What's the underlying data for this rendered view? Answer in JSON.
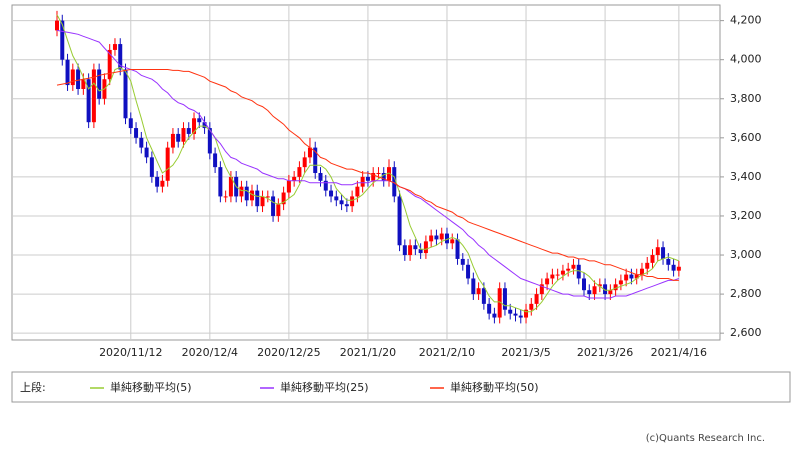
{
  "chart_data": {
    "type": "candlestick",
    "categories": [
      null,
      null,
      null,
      null,
      null,
      null,
      null,
      null,
      null,
      null,
      null,
      null,
      null,
      null,
      "2020/11/12",
      null,
      null,
      null,
      null,
      null,
      null,
      null,
      null,
      null,
      null,
      null,
      null,
      null,
      null,
      "2020/12/4",
      null,
      null,
      null,
      null,
      null,
      null,
      null,
      null,
      null,
      null,
      null,
      null,
      null,
      null,
      "2020/12/25",
      null,
      null,
      null,
      null,
      null,
      null,
      null,
      null,
      null,
      null,
      null,
      null,
      null,
      null,
      "2021/1/20",
      null,
      null,
      null,
      null,
      null,
      null,
      null,
      null,
      null,
      null,
      null,
      null,
      null,
      null,
      "2021/2/10",
      null,
      null,
      null,
      null,
      null,
      null,
      null,
      null,
      null,
      null,
      null,
      null,
      null,
      null,
      "2021/3/5",
      null,
      null,
      null,
      null,
      null,
      null,
      null,
      null,
      null,
      null,
      null,
      null,
      null,
      null,
      "2021/3/26",
      null,
      null,
      null,
      null,
      null,
      null,
      null,
      null,
      null,
      null,
      null,
      null,
      null,
      "2021/4/16"
    ],
    "open": [
      4150,
      4200,
      4000,
      3870,
      3950,
      3850,
      3900,
      3680,
      3950,
      3800,
      3900,
      4050,
      4080,
      3950,
      3700,
      3650,
      3600,
      3550,
      3500,
      3400,
      3350,
      3380,
      3550,
      3620,
      3580,
      3650,
      3620,
      3700,
      3680,
      3650,
      3520,
      3450,
      3300,
      3300,
      3400,
      3300,
      3350,
      3280,
      3330,
      3250,
      3300,
      3300,
      3200,
      3260,
      3320,
      3380,
      3400,
      3450,
      3500,
      3550,
      3420,
      3380,
      3330,
      3300,
      3280,
      3260,
      3250,
      3300,
      3350,
      3400,
      3380,
      3420,
      3420,
      3380,
      3450,
      3300,
      3050,
      3000,
      3050,
      3030,
      3010,
      3070,
      3100,
      3080,
      3110,
      3060,
      3080,
      2980,
      2950,
      2880,
      2800,
      2830,
      2750,
      2700,
      2680,
      2830,
      2720,
      2700,
      2690,
      2680,
      2720,
      2750,
      2800,
      2850,
      2880,
      2900,
      2900,
      2920,
      2930,
      2950,
      2880,
      2820,
      2800,
      2840,
      2850,
      2800,
      2820,
      2850,
      2870,
      2900,
      2880,
      2900,
      2930,
      2960,
      3000,
      3040,
      2980,
      2950,
      2920
    ],
    "high": [
      4250,
      4230,
      4030,
      3980,
      3980,
      3930,
      3930,
      3980,
      3980,
      3930,
      4080,
      4110,
      4110,
      3980,
      3730,
      3680,
      3630,
      3580,
      3530,
      3430,
      3410,
      3580,
      3650,
      3650,
      3680,
      3680,
      3730,
      3730,
      3710,
      3680,
      3550,
      3480,
      3330,
      3430,
      3430,
      3380,
      3380,
      3360,
      3360,
      3330,
      3330,
      3330,
      3290,
      3350,
      3410,
      3430,
      3480,
      3530,
      3600,
      3580,
      3450,
      3410,
      3360,
      3330,
      3310,
      3290,
      3330,
      3380,
      3430,
      3430,
      3450,
      3450,
      3450,
      3490,
      3480,
      3330,
      3080,
      3080,
      3080,
      3060,
      3100,
      3130,
      3130,
      3140,
      3140,
      3110,
      3110,
      3010,
      2980,
      2910,
      2860,
      2860,
      2780,
      2730,
      2860,
      2860,
      2750,
      2730,
      2720,
      2750,
      2780,
      2830,
      2880,
      2910,
      2930,
      2930,
      2950,
      2960,
      2980,
      2980,
      2910,
      2850,
      2870,
      2880,
      2880,
      2850,
      2880,
      2900,
      2930,
      2930,
      2930,
      2960,
      2990,
      3030,
      3080,
      3070,
      3010,
      2980,
      2970
    ],
    "low": [
      4120,
      3970,
      3840,
      3840,
      3820,
      3820,
      3650,
      3650,
      3770,
      3770,
      3870,
      4020,
      3920,
      3670,
      3620,
      3570,
      3520,
      3470,
      3370,
      3320,
      3320,
      3350,
      3520,
      3550,
      3550,
      3590,
      3590,
      3650,
      3620,
      3490,
      3420,
      3270,
      3270,
      3270,
      3270,
      3270,
      3250,
      3250,
      3220,
      3220,
      3270,
      3170,
      3170,
      3230,
      3290,
      3350,
      3370,
      3420,
      3470,
      3390,
      3350,
      3300,
      3270,
      3250,
      3230,
      3220,
      3220,
      3270,
      3320,
      3350,
      3350,
      3390,
      3350,
      3350,
      3270,
      3020,
      2970,
      2970,
      3000,
      2980,
      2980,
      3040,
      3050,
      3050,
      3030,
      3030,
      2950,
      2920,
      2850,
      2770,
      2770,
      2720,
      2670,
      2650,
      2650,
      2690,
      2670,
      2660,
      2650,
      2650,
      2690,
      2720,
      2770,
      2820,
      2850,
      2870,
      2870,
      2890,
      2900,
      2850,
      2790,
      2770,
      2770,
      2810,
      2770,
      2770,
      2790,
      2820,
      2840,
      2850,
      2850,
      2870,
      2900,
      2930,
      2970,
      2950,
      2920,
      2890,
      2890
    ],
    "close": [
      4200,
      4000,
      3870,
      3950,
      3850,
      3900,
      3680,
      3950,
      3800,
      3900,
      4050,
      4080,
      3950,
      3700,
      3650,
      3600,
      3550,
      3500,
      3400,
      3350,
      3380,
      3550,
      3620,
      3580,
      3650,
      3620,
      3700,
      3680,
      3650,
      3520,
      3450,
      3300,
      3300,
      3400,
      3300,
      3350,
      3280,
      3330,
      3250,
      3300,
      3300,
      3200,
      3260,
      3320,
      3380,
      3400,
      3450,
      3500,
      3550,
      3420,
      3380,
      3330,
      3300,
      3280,
      3260,
      3250,
      3300,
      3350,
      3400,
      3380,
      3420,
      3420,
      3380,
      3450,
      3300,
      3050,
      3000,
      3050,
      3030,
      3010,
      3070,
      3100,
      3080,
      3110,
      3060,
      3080,
      2980,
      2950,
      2880,
      2800,
      2830,
      2750,
      2700,
      2680,
      2830,
      2720,
      2700,
      2690,
      2680,
      2720,
      2750,
      2800,
      2850,
      2880,
      2900,
      2900,
      2920,
      2930,
      2950,
      2880,
      2820,
      2800,
      2840,
      2850,
      2800,
      2820,
      2850,
      2870,
      2900,
      2880,
      2900,
      2930,
      2960,
      3000,
      3040,
      2980,
      2950,
      2920,
      2940
    ],
    "up_color": "#ff0000",
    "down_color": "#1010c0",
    "series": [
      {
        "name": "単純移動平均(5)",
        "color": "#99cc33",
        "values": [
          4230,
          4180,
          4100,
          4020,
          3970,
          3910,
          3850,
          3880,
          3840,
          3850,
          3880,
          3950,
          3960,
          3940,
          3890,
          3790,
          3700,
          3600,
          3540,
          3480,
          3420,
          3440,
          3460,
          3500,
          3560,
          3600,
          3630,
          3660,
          3660,
          3640,
          3600,
          3520,
          3450,
          3400,
          3350,
          3330,
          3330,
          3310,
          3300,
          3300,
          3290,
          3270,
          3260,
          3270,
          3290,
          3310,
          3360,
          3420,
          3460,
          3460,
          3460,
          3440,
          3400,
          3340,
          3310,
          3280,
          3280,
          3290,
          3310,
          3340,
          3370,
          3390,
          3410,
          3420,
          3400,
          3320,
          3240,
          3150,
          3090,
          3030,
          3030,
          3040,
          3050,
          3070,
          3080,
          3090,
          3080,
          3050,
          3010,
          2940,
          2880,
          2840,
          2790,
          2760,
          2760,
          2740,
          2740,
          2730,
          2720,
          2710,
          2710,
          2730,
          2760,
          2800,
          2840,
          2870,
          2890,
          2910,
          2920,
          2920,
          2910,
          2890,
          2860,
          2840,
          2820,
          2820,
          2830,
          2840,
          2850,
          2860,
          2880,
          2900,
          2910,
          2930,
          2970,
          2980,
          2990,
          2980,
          2970
        ]
      },
      {
        "name": "単純移動平均(25)",
        "color": "#9933ff",
        "values": [
          4150,
          4145,
          4140,
          4135,
          4130,
          4120,
          4110,
          4100,
          4090,
          4060,
          4030,
          4000,
          3970,
          3960,
          3950,
          3940,
          3920,
          3910,
          3900,
          3880,
          3850,
          3830,
          3800,
          3780,
          3770,
          3750,
          3740,
          3720,
          3680,
          3640,
          3600,
          3570,
          3530,
          3500,
          3490,
          3470,
          3460,
          3450,
          3440,
          3420,
          3410,
          3400,
          3390,
          3390,
          3380,
          3380,
          3380,
          3380,
          3370,
          3370,
          3370,
          3370,
          3370,
          3370,
          3360,
          3360,
          3360,
          3370,
          3370,
          3370,
          3380,
          3380,
          3380,
          3380,
          3370,
          3350,
          3340,
          3320,
          3300,
          3290,
          3270,
          3250,
          3230,
          3210,
          3190,
          3170,
          3150,
          3130,
          3100,
          3080,
          3050,
          3030,
          3000,
          2980,
          2960,
          2940,
          2920,
          2900,
          2880,
          2870,
          2860,
          2850,
          2840,
          2830,
          2820,
          2810,
          2800,
          2800,
          2790,
          2790,
          2790,
          2780,
          2780,
          2780,
          2780,
          2780,
          2790,
          2790,
          2790,
          2800,
          2810,
          2820,
          2830,
          2840,
          2850,
          2860,
          2870,
          2870,
          2880
        ]
      },
      {
        "name": "単純移動平均(50)",
        "color": "#ff3311",
        "values": [
          3870,
          3875,
          3880,
          3890,
          3895,
          3900,
          3905,
          3910,
          3920,
          3925,
          3930,
          3935,
          3940,
          3945,
          3950,
          3950,
          3950,
          3950,
          3950,
          3950,
          3950,
          3950,
          3945,
          3945,
          3940,
          3940,
          3930,
          3920,
          3910,
          3890,
          3880,
          3870,
          3860,
          3840,
          3830,
          3810,
          3800,
          3790,
          3770,
          3760,
          3740,
          3710,
          3690,
          3670,
          3640,
          3620,
          3600,
          3570,
          3550,
          3530,
          3500,
          3490,
          3470,
          3460,
          3450,
          3440,
          3440,
          3430,
          3420,
          3420,
          3410,
          3400,
          3390,
          3380,
          3370,
          3350,
          3340,
          3330,
          3310,
          3300,
          3280,
          3270,
          3250,
          3240,
          3230,
          3220,
          3200,
          3190,
          3170,
          3160,
          3150,
          3140,
          3130,
          3120,
          3110,
          3100,
          3090,
          3080,
          3070,
          3060,
          3050,
          3040,
          3030,
          3020,
          3010,
          3010,
          3000,
          2990,
          2990,
          2980,
          2980,
          2970,
          2970,
          2960,
          2950,
          2950,
          2940,
          2930,
          2920,
          2910,
          2900,
          2900,
          2890,
          2890,
          2880,
          2880,
          2880,
          2870,
          2870
        ]
      }
    ],
    "legend_title": "上段:",
    "ylim": [
      2565,
      4280
    ],
    "yticks": [
      {
        "value": 2600,
        "label": "2,600"
      },
      {
        "value": 2800,
        "label": "2,800"
      },
      {
        "value": 3000,
        "label": "3,000"
      },
      {
        "value": 3200,
        "label": "3,200"
      },
      {
        "value": 3400,
        "label": "3,400"
      },
      {
        "value": 3600,
        "label": "3,600"
      },
      {
        "value": 3800,
        "label": "3,800"
      },
      {
        "value": 4000,
        "label": "4,000"
      },
      {
        "value": 4200,
        "label": "4,200"
      }
    ],
    "grid": true,
    "credit": "(c)Quants Research Inc."
  }
}
